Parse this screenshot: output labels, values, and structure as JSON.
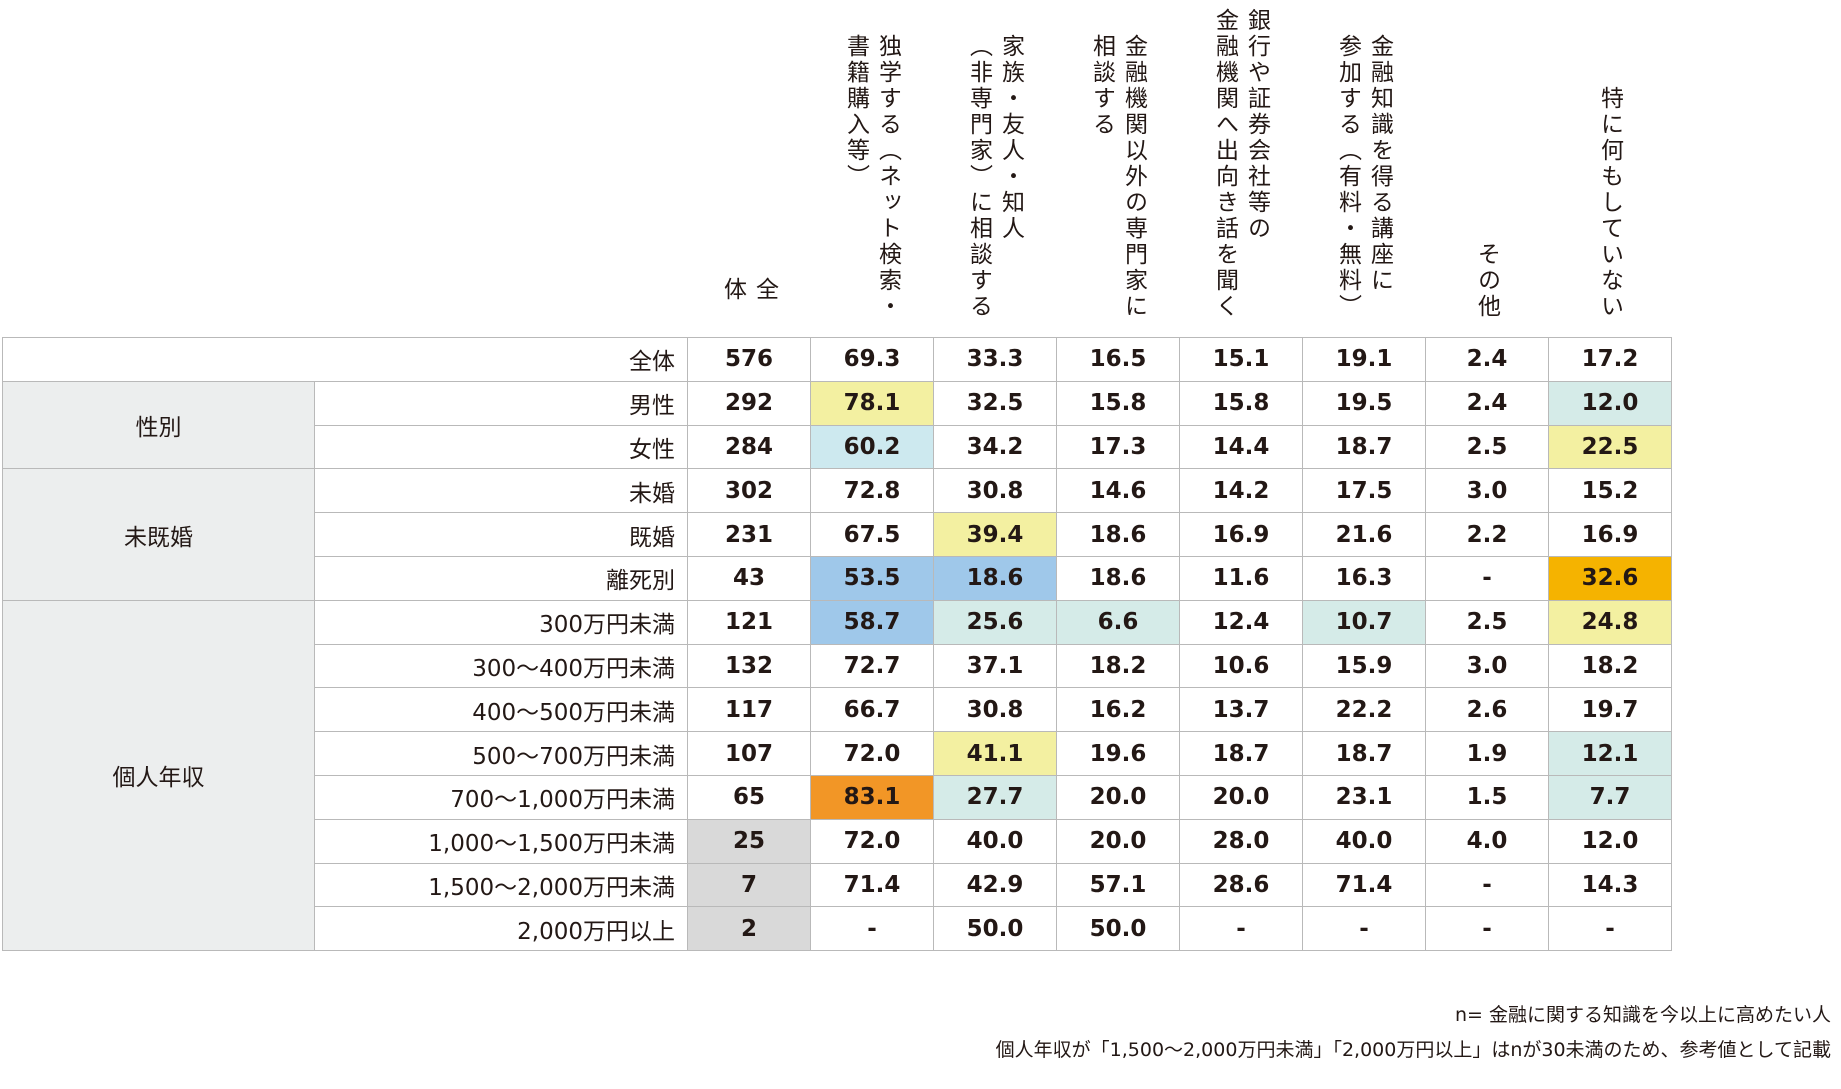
{
  "chart_data": {
    "type": "table",
    "columns": [
      {
        "key": "total",
        "lines": [
          "全",
          "体"
        ]
      },
      {
        "key": "self_study",
        "lines": [
          "独学する（ネット検索・",
          "書籍購入等）"
        ]
      },
      {
        "key": "family",
        "lines": [
          "家族・友人・知人",
          "（非専門家）に相談する"
        ]
      },
      {
        "key": "non_fi_expert",
        "lines": [
          "金融機関以外の専門家に",
          "相談する"
        ]
      },
      {
        "key": "bank_visit",
        "lines": [
          "銀行や証券会社等の",
          "金融機関へ出向き話を聞く"
        ]
      },
      {
        "key": "lecture",
        "lines": [
          "金融知識を得る講座に",
          "参加する（有料・無料）"
        ]
      },
      {
        "key": "other",
        "lines": [
          "その他"
        ]
      },
      {
        "key": "nothing",
        "lines": [
          "特に何もしていない"
        ]
      }
    ],
    "colors": {
      "yellow": "#f3f0a1",
      "light_blue": "#cde9ef",
      "light_teal": "#d5ebe8",
      "blue": "#9fc8ea",
      "orange": "#f29626",
      "gold": "#f5b300",
      "gray": "#d9d9d9"
    },
    "groups": [
      {
        "label": "",
        "rows": [
          {
            "label": "全体",
            "values": [
              "576",
              "69.3",
              "33.3",
              "16.5",
              "15.1",
              "19.1",
              "2.4",
              "17.2"
            ],
            "highlights": [
              null,
              null,
              null,
              null,
              null,
              null,
              null,
              null
            ]
          }
        ]
      },
      {
        "label": "性別",
        "rows": [
          {
            "label": "男性",
            "values": [
              "292",
              "78.1",
              "32.5",
              "15.8",
              "15.8",
              "19.5",
              "2.4",
              "12.0"
            ],
            "highlights": [
              null,
              "yellow",
              null,
              null,
              null,
              null,
              null,
              "light_teal"
            ]
          },
          {
            "label": "女性",
            "values": [
              "284",
              "60.2",
              "34.2",
              "17.3",
              "14.4",
              "18.7",
              "2.5",
              "22.5"
            ],
            "highlights": [
              null,
              "light_blue",
              null,
              null,
              null,
              null,
              null,
              "yellow"
            ]
          }
        ]
      },
      {
        "label": "未既婚",
        "rows": [
          {
            "label": "未婚",
            "values": [
              "302",
              "72.8",
              "30.8",
              "14.6",
              "14.2",
              "17.5",
              "3.0",
              "15.2"
            ],
            "highlights": [
              null,
              null,
              null,
              null,
              null,
              null,
              null,
              null
            ]
          },
          {
            "label": "既婚",
            "values": [
              "231",
              "67.5",
              "39.4",
              "18.6",
              "16.9",
              "21.6",
              "2.2",
              "16.9"
            ],
            "highlights": [
              null,
              null,
              "yellow",
              null,
              null,
              null,
              null,
              null
            ]
          },
          {
            "label": "離死別",
            "values": [
              "43",
              "53.5",
              "18.6",
              "18.6",
              "11.6",
              "16.3",
              "-",
              "32.6"
            ],
            "highlights": [
              null,
              "blue",
              "blue",
              null,
              null,
              null,
              null,
              "gold"
            ]
          }
        ]
      },
      {
        "label": "個人年収",
        "rows": [
          {
            "label": "300万円未満",
            "values": [
              "121",
              "58.7",
              "25.6",
              "6.6",
              "12.4",
              "10.7",
              "2.5",
              "24.8"
            ],
            "highlights": [
              null,
              "blue",
              "light_teal",
              "light_teal",
              null,
              "light_teal",
              null,
              "yellow"
            ]
          },
          {
            "label": "300〜400万円未満",
            "values": [
              "132",
              "72.7",
              "37.1",
              "18.2",
              "10.6",
              "15.9",
              "3.0",
              "18.2"
            ],
            "highlights": [
              null,
              null,
              null,
              null,
              null,
              null,
              null,
              null
            ]
          },
          {
            "label": "400〜500万円未満",
            "values": [
              "117",
              "66.7",
              "30.8",
              "16.2",
              "13.7",
              "22.2",
              "2.6",
              "19.7"
            ],
            "highlights": [
              null,
              null,
              null,
              null,
              null,
              null,
              null,
              null
            ]
          },
          {
            "label": "500〜700万円未満",
            "values": [
              "107",
              "72.0",
              "41.1",
              "19.6",
              "18.7",
              "18.7",
              "1.9",
              "12.1"
            ],
            "highlights": [
              null,
              null,
              "yellow",
              null,
              null,
              null,
              null,
              "light_teal"
            ]
          },
          {
            "label": "700〜1,000万円未満",
            "values": [
              "65",
              "83.1",
              "27.7",
              "20.0",
              "20.0",
              "23.1",
              "1.5",
              "7.7"
            ],
            "highlights": [
              null,
              "orange",
              "light_teal",
              null,
              null,
              null,
              null,
              "light_teal"
            ]
          },
          {
            "label": "1,000〜1,500万円未満",
            "values": [
              "25",
              "72.0",
              "40.0",
              "20.0",
              "28.0",
              "40.0",
              "4.0",
              "12.0"
            ],
            "highlights": [
              "gray",
              null,
              null,
              null,
              null,
              null,
              null,
              null
            ]
          },
          {
            "label": "1,500〜2,000万円未満",
            "values": [
              "7",
              "71.4",
              "42.9",
              "57.1",
              "28.6",
              "71.4",
              "-",
              "14.3"
            ],
            "highlights": [
              "gray",
              null,
              null,
              null,
              null,
              null,
              null,
              null
            ]
          },
          {
            "label": "2,000万円以上",
            "values": [
              "2",
              "-",
              "50.0",
              "50.0",
              "-",
              "-",
              "-",
              "-"
            ],
            "highlights": [
              "gray",
              null,
              null,
              null,
              null,
              null,
              null,
              null
            ]
          }
        ]
      }
    ]
  },
  "notes": [
    "n= 金融に関する知識を今以上に高めたい人",
    "個人年収が「1,500〜2,000万円未満」「2,000万円以上」はnが30未満のため、参考値として記載"
  ]
}
